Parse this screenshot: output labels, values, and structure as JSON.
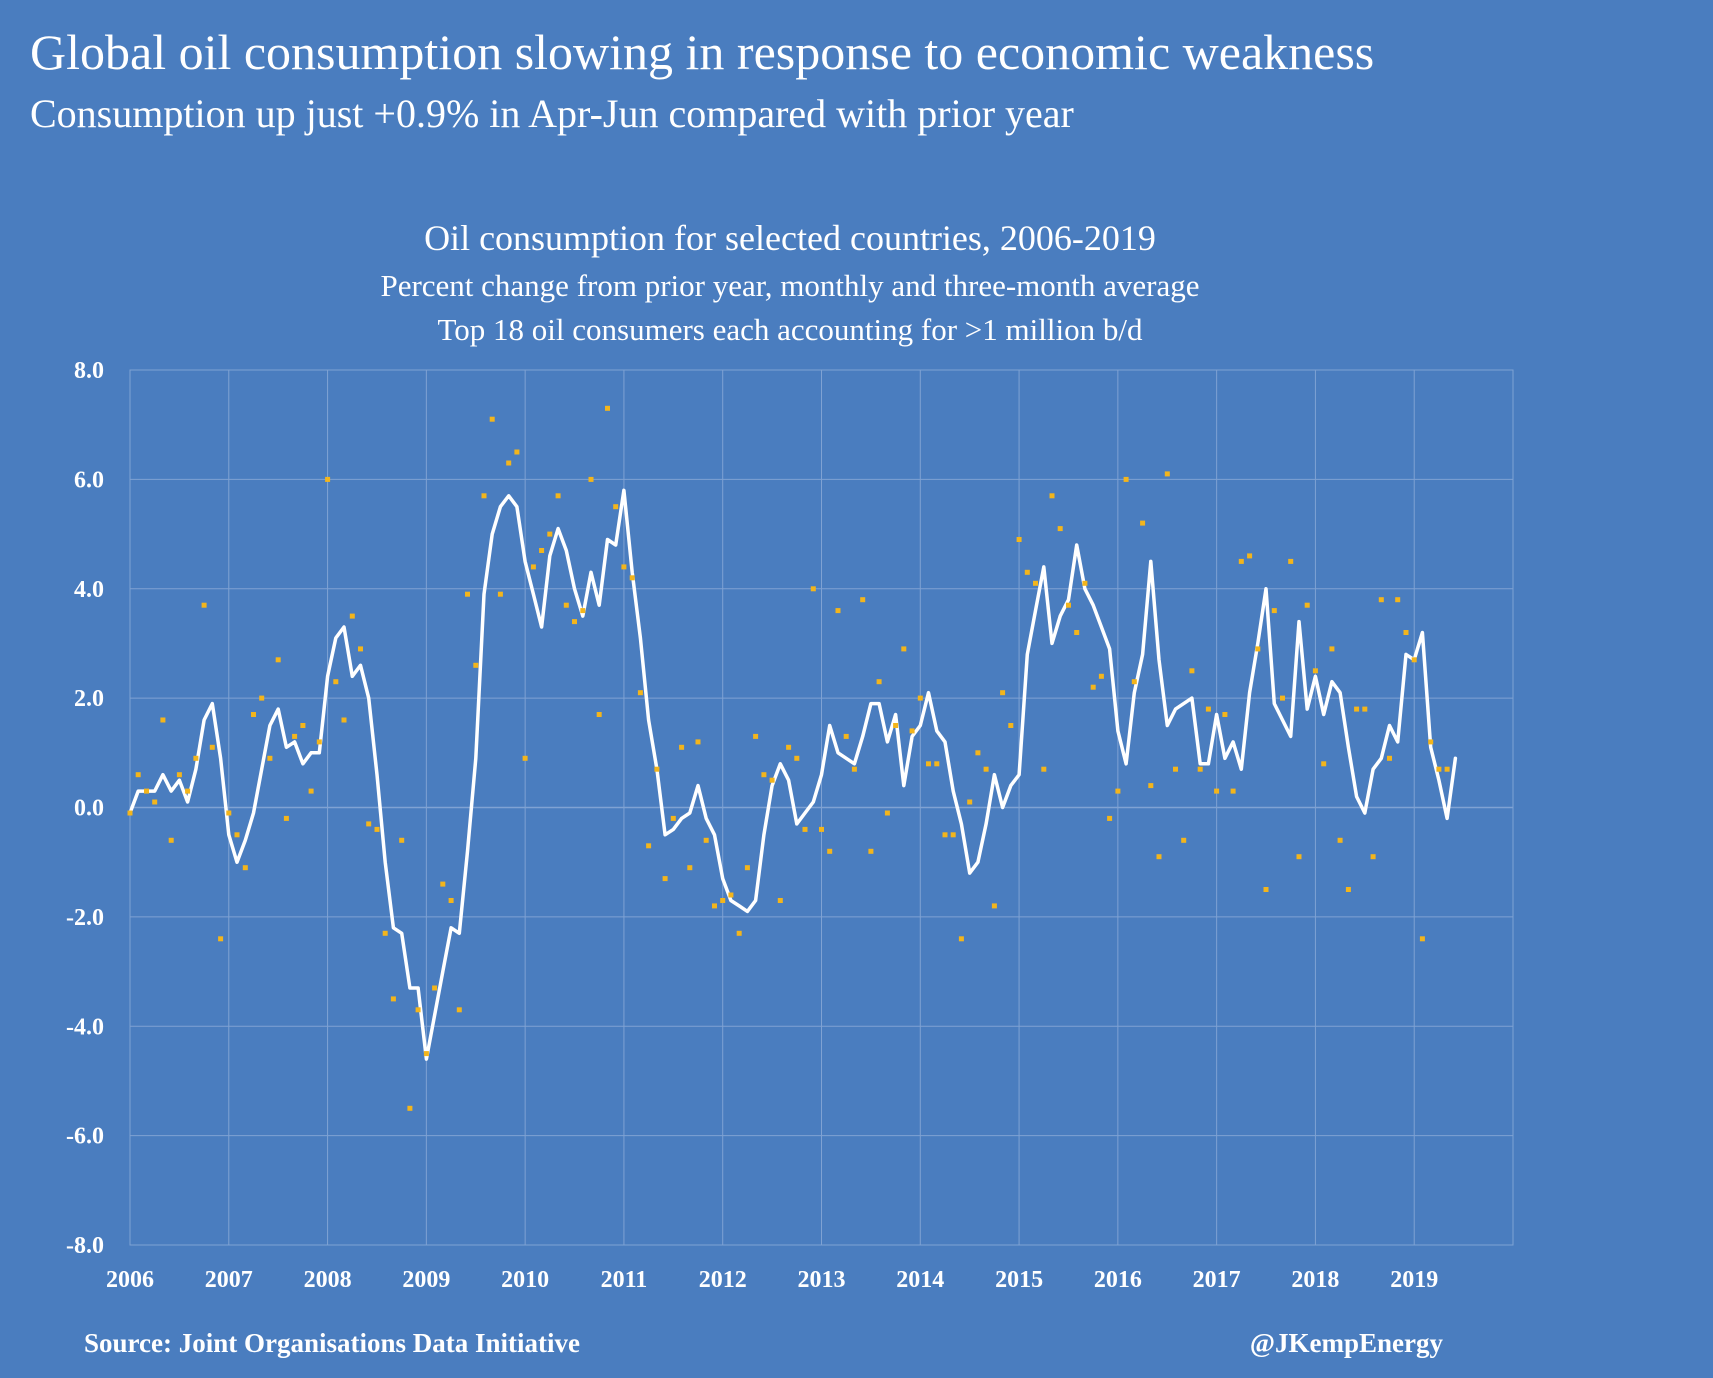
{
  "header": {
    "headline": "Global oil consumption slowing in response to economic weakness",
    "subheadline": "Consumption up just +0.9% in Apr-Jun compared with prior year"
  },
  "footer": {
    "source": "Source: Joint Organisations Data Initiative",
    "credit": "@JKempEnergy"
  },
  "colors": {
    "background": "#4a7dbf",
    "grid": "#7fa2d3",
    "line": "#ffffff",
    "dots": "#f3b51c",
    "text": "#ffffff"
  },
  "chart_data": {
    "type": "line",
    "title": "Oil consumption for selected countries, 2006-2019",
    "subtitle_1": "Percent change from prior year, monthly and three-month average",
    "subtitle_2": "Top 18 oil consumers each accounting for >1 million b/d",
    "xlabel": "",
    "ylabel": "",
    "ylim": [
      -8,
      8
    ],
    "xlim": [
      2006,
      2020
    ],
    "ytick_labels": [
      "8.0",
      "6.0",
      "4.0",
      "2.0",
      "0.0",
      "-2.0",
      "-4.0",
      "-6.0",
      "-8.0"
    ],
    "ytick_values": [
      8,
      6,
      4,
      2,
      0,
      -2,
      -4,
      -6,
      -8
    ],
    "xtick_labels": [
      "2006",
      "2007",
      "2008",
      "2009",
      "2010",
      "2011",
      "2012",
      "2013",
      "2014",
      "2015",
      "2016",
      "2017",
      "2018",
      "2019"
    ],
    "xtick_values": [
      2006,
      2007,
      2008,
      2009,
      2010,
      2011,
      2012,
      2013,
      2014,
      2015,
      2016,
      2017,
      2018,
      2019
    ],
    "grid": true,
    "legend": "none",
    "series": [
      {
        "name": "Three-month average",
        "style": "line",
        "start": "2006-01",
        "values": [
          -0.1,
          0.3,
          0.3,
          0.3,
          0.6,
          0.3,
          0.5,
          0.1,
          0.7,
          1.6,
          1.9,
          0.9,
          -0.5,
          -1.0,
          -0.6,
          -0.1,
          0.7,
          1.5,
          1.8,
          1.1,
          1.2,
          0.8,
          1.0,
          1.0,
          2.4,
          3.1,
          3.3,
          2.4,
          2.6,
          2.0,
          0.6,
          -1.0,
          -2.2,
          -2.3,
          -3.3,
          -3.3,
          -4.6,
          -3.8,
          -3.0,
          -2.2,
          -2.3,
          -0.8,
          0.9,
          3.9,
          5.0,
          5.5,
          5.7,
          5.5,
          4.5,
          3.9,
          3.3,
          4.6,
          5.1,
          4.7,
          4.0,
          3.5,
          4.3,
          3.7,
          4.9,
          4.8,
          5.8,
          4.3,
          3.1,
          1.6,
          0.7,
          -0.5,
          -0.4,
          -0.2,
          -0.1,
          0.4,
          -0.2,
          -0.5,
          -1.3,
          -1.7,
          -1.8,
          -1.9,
          -1.7,
          -0.5,
          0.4,
          0.8,
          0.5,
          -0.3,
          -0.1,
          0.1,
          0.6,
          1.5,
          1.0,
          0.9,
          0.8,
          1.3,
          1.9,
          1.9,
          1.2,
          1.7,
          0.4,
          1.3,
          1.5,
          2.1,
          1.4,
          1.2,
          0.3,
          -0.3,
          -1.2,
          -1.0,
          -0.3,
          0.6,
          0.0,
          0.4,
          0.6,
          2.8,
          3.6,
          4.4,
          3.0,
          3.5,
          3.8,
          4.8,
          4.0,
          3.7,
          3.3,
          2.9,
          1.4,
          0.8,
          2.1,
          2.8,
          4.5,
          2.7,
          1.5,
          1.8,
          1.9,
          2.0,
          0.8,
          0.8,
          1.7,
          0.9,
          1.2,
          0.7,
          2.1,
          3.0,
          4.0,
          1.9,
          1.6,
          1.3,
          3.4,
          1.8,
          2.4,
          1.7,
          2.3,
          2.1,
          1.1,
          0.2,
          -0.1,
          0.7,
          0.9,
          1.5,
          1.2,
          2.8,
          2.7,
          3.2,
          1.1,
          0.5,
          -0.2,
          0.9
        ]
      },
      {
        "name": "Monthly",
        "style": "dots",
        "start": "2006-01",
        "values": [
          -0.1,
          0.6,
          0.3,
          0.1,
          1.6,
          -0.6,
          0.6,
          0.3,
          0.9,
          3.7,
          1.1,
          -2.4,
          -0.1,
          -0.5,
          -1.1,
          1.7,
          2.0,
          0.9,
          2.7,
          -0.2,
          1.3,
          1.5,
          0.3,
          1.2,
          6.0,
          2.3,
          1.6,
          3.5,
          2.9,
          -0.3,
          -0.4,
          -2.3,
          -3.5,
          -0.6,
          -5.5,
          -3.7,
          -4.5,
          -3.3,
          -1.4,
          -1.7,
          -3.7,
          3.9,
          2.6,
          5.7,
          7.1,
          3.9,
          6.3,
          6.5,
          0.9,
          4.4,
          4.7,
          5.0,
          5.7,
          3.7,
          3.4,
          3.6,
          6.0,
          1.7,
          7.3,
          5.5,
          4.4,
          4.2,
          2.1,
          -0.7,
          0.7,
          -1.3,
          -0.2,
          1.1,
          -1.1,
          1.2,
          -0.6,
          -1.8,
          -1.7,
          -1.6,
          -2.3,
          -1.1,
          1.3,
          0.6,
          0.5,
          -1.7,
          1.1,
          0.9,
          -0.4,
          4.0,
          -0.4,
          -0.8,
          3.6,
          1.3,
          0.7,
          3.8,
          -0.8,
          2.3,
          -0.1,
          1.5,
          2.9,
          1.4,
          2.0,
          0.8,
          0.8,
          -0.5,
          -0.5,
          -2.4,
          0.1,
          1.0,
          0.7,
          -1.8,
          2.1,
          1.5,
          4.9,
          4.3,
          4.1,
          0.7,
          5.7,
          5.1,
          3.7,
          3.2,
          4.1,
          2.2,
          2.4,
          -0.2,
          0.3,
          6.0,
          2.3,
          5.2,
          0.4,
          -0.9,
          6.1,
          0.7,
          -0.6,
          2.5,
          0.7,
          1.8,
          0.3,
          1.7,
          0.3,
          4.5,
          4.6,
          2.9,
          -1.5,
          3.6,
          2.0,
          4.5,
          -0.9,
          3.7,
          2.5,
          0.8,
          2.9,
          -0.6,
          -1.5,
          1.8,
          1.8,
          -0.9,
          3.8,
          0.9,
          3.8,
          3.2,
          2.7,
          -2.4,
          1.2,
          0.7,
          0.7
        ]
      }
    ]
  }
}
